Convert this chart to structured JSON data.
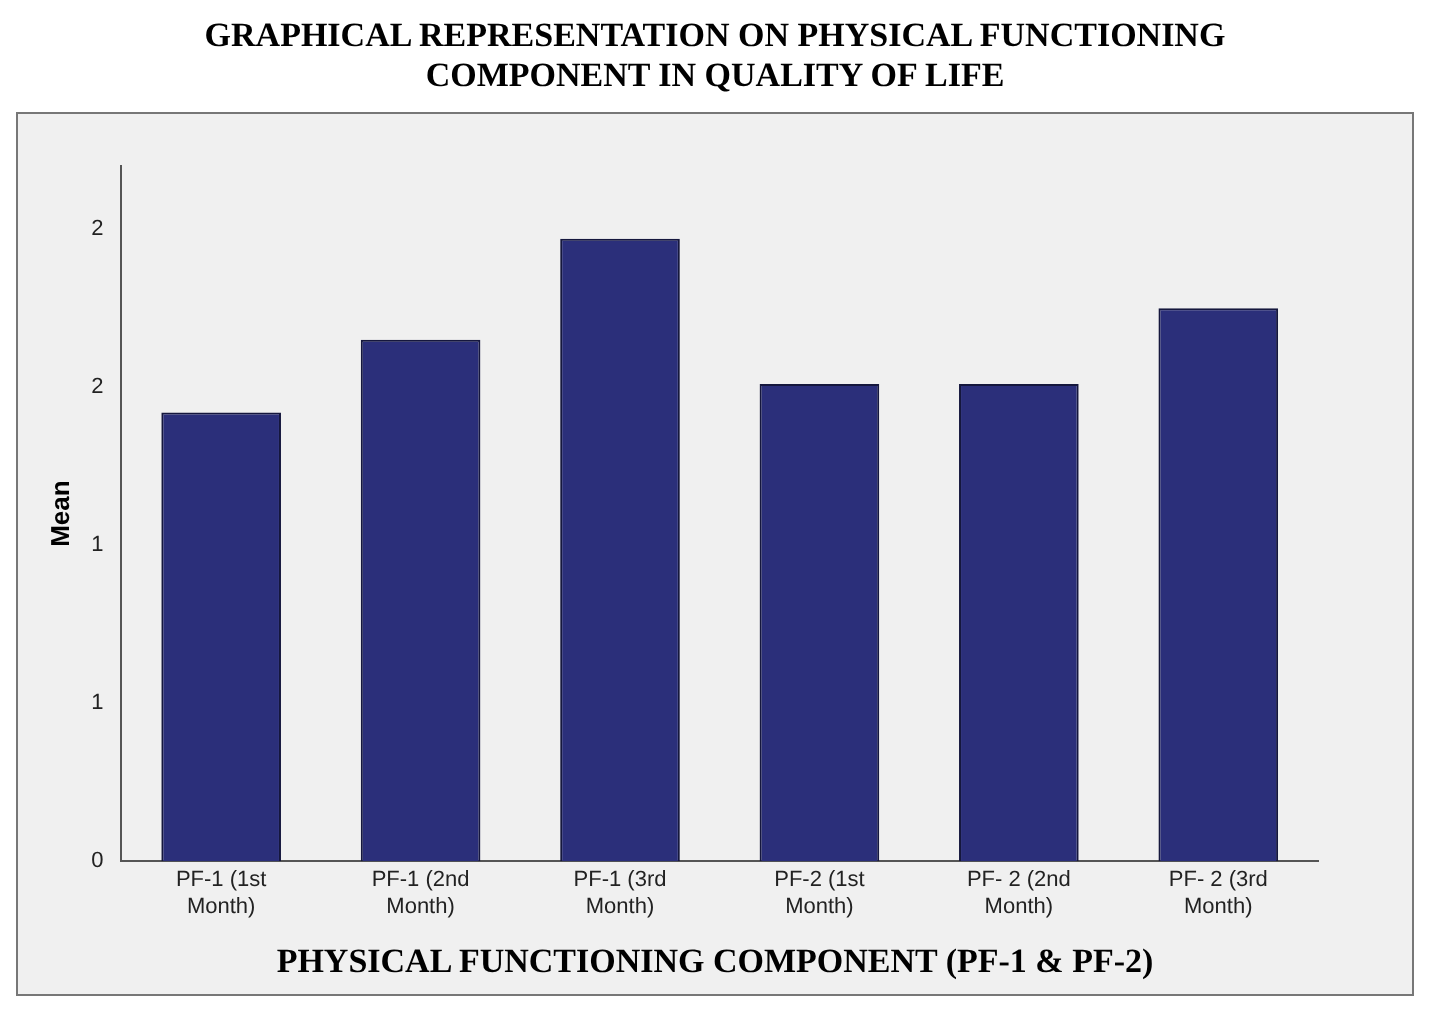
{
  "chart_data": {
    "type": "bar",
    "title": "GRAPHICAL REPRESENTATION ON PHYSICAL FUNCTIONING COMPONENT IN QUALITY OF LIFE",
    "xlabel": "PHYSICAL FUNCTIONING COMPONENT (PF-1 & PF-2)",
    "ylabel": "Mean",
    "categories": [
      "PF-1 (1st Month)",
      "PF-1 (2nd Month)",
      "PF-1 (3rd Month)",
      "PF-2 (1st Month)",
      "PF- 2 (2nd Month)",
      "PF- 2 (3rd Month)"
    ],
    "values": [
      1.42,
      1.65,
      1.97,
      1.51,
      1.51,
      1.75
    ],
    "color": "#2b2f7a",
    "ylim": [
      0,
      2.2
    ],
    "yticks": [
      {
        "value": 0,
        "label": "0"
      },
      {
        "value": 0.5,
        "label": "1"
      },
      {
        "value": 1,
        "label": "1"
      },
      {
        "value": 1.5,
        "label": "2"
      },
      {
        "value": 2,
        "label": "2"
      }
    ],
    "grid": false
  }
}
